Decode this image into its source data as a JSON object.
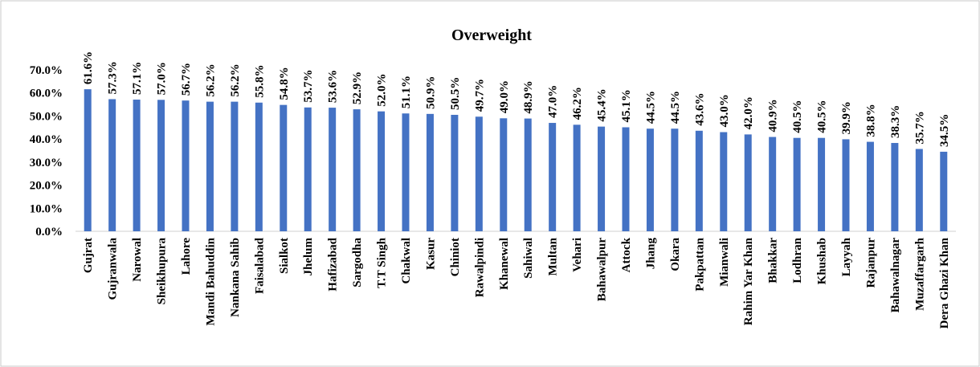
{
  "chart_data": {
    "type": "bar",
    "title": "Overweight",
    "categories": [
      "Gujrat",
      "Gujranwala",
      "Narowal",
      "Sheikhupura",
      "Lahore",
      "Mandi Bahuddin",
      "Nankana Sahib",
      "Faisalabad",
      "Sialkot",
      "Jhelum",
      "Hafizabad",
      "Sargodha",
      "T.T Singh",
      "Chakwal",
      "Kasur",
      "Chiniot",
      "Rawalpindi",
      "Khanewal",
      "Sahiwal",
      "Multan",
      "Vehari",
      "Bahawalpur",
      "Attock",
      "Jhang",
      "Okara",
      "Pakpattan",
      "Mianwali",
      "Rahim Yar Khan",
      "Bhakkar",
      "Lodhran",
      "Khushab",
      "Layyah",
      "Rajanpur",
      "Bahawalnagar",
      "Muzaffargarh",
      "Dera Ghazi Khan"
    ],
    "values": [
      61.6,
      57.3,
      57.1,
      57.0,
      56.7,
      56.2,
      56.2,
      55.8,
      54.8,
      53.7,
      53.6,
      52.9,
      52.0,
      51.1,
      50.9,
      50.5,
      49.7,
      49.0,
      48.9,
      47.0,
      46.2,
      45.4,
      45.1,
      44.5,
      44.5,
      43.6,
      43.0,
      42.0,
      40.9,
      40.5,
      40.5,
      39.9,
      38.8,
      38.3,
      35.7,
      34.5
    ],
    "value_labels": [
      "61.6%",
      "57.3%",
      "57.1%",
      "57.0%",
      "56.7%",
      "56.2%",
      "56.2%",
      "55.8%",
      "54.8%",
      "53.7%",
      "53.6%",
      "52.9%",
      "52.0%",
      "51.1%",
      "50.9%",
      "50.5%",
      "49.7%",
      "49.0%",
      "48.9%",
      "47.0%",
      "46.2%",
      "45.4%",
      "45.1%",
      "44.5%",
      "44.5%",
      "43.6%",
      "43.0%",
      "42.0%",
      "40.9%",
      "40.5%",
      "40.5%",
      "39.9%",
      "38.8%",
      "38.3%",
      "35.7%",
      "34.5%"
    ],
    "color": "#4472c4",
    "ylim": [
      0,
      70
    ],
    "yticks": [
      {
        "value": 0,
        "label": "0.0%"
      },
      {
        "value": 10,
        "label": "10.0%"
      },
      {
        "value": 20,
        "label": "20.0%"
      },
      {
        "value": 30,
        "label": "30.0%"
      },
      {
        "value": 40,
        "label": "40.0%"
      },
      {
        "value": 50,
        "label": "50.0%"
      },
      {
        "value": 60,
        "label": "60.0%"
      },
      {
        "value": 70,
        "label": "70.0%"
      }
    ],
    "grid": false
  }
}
